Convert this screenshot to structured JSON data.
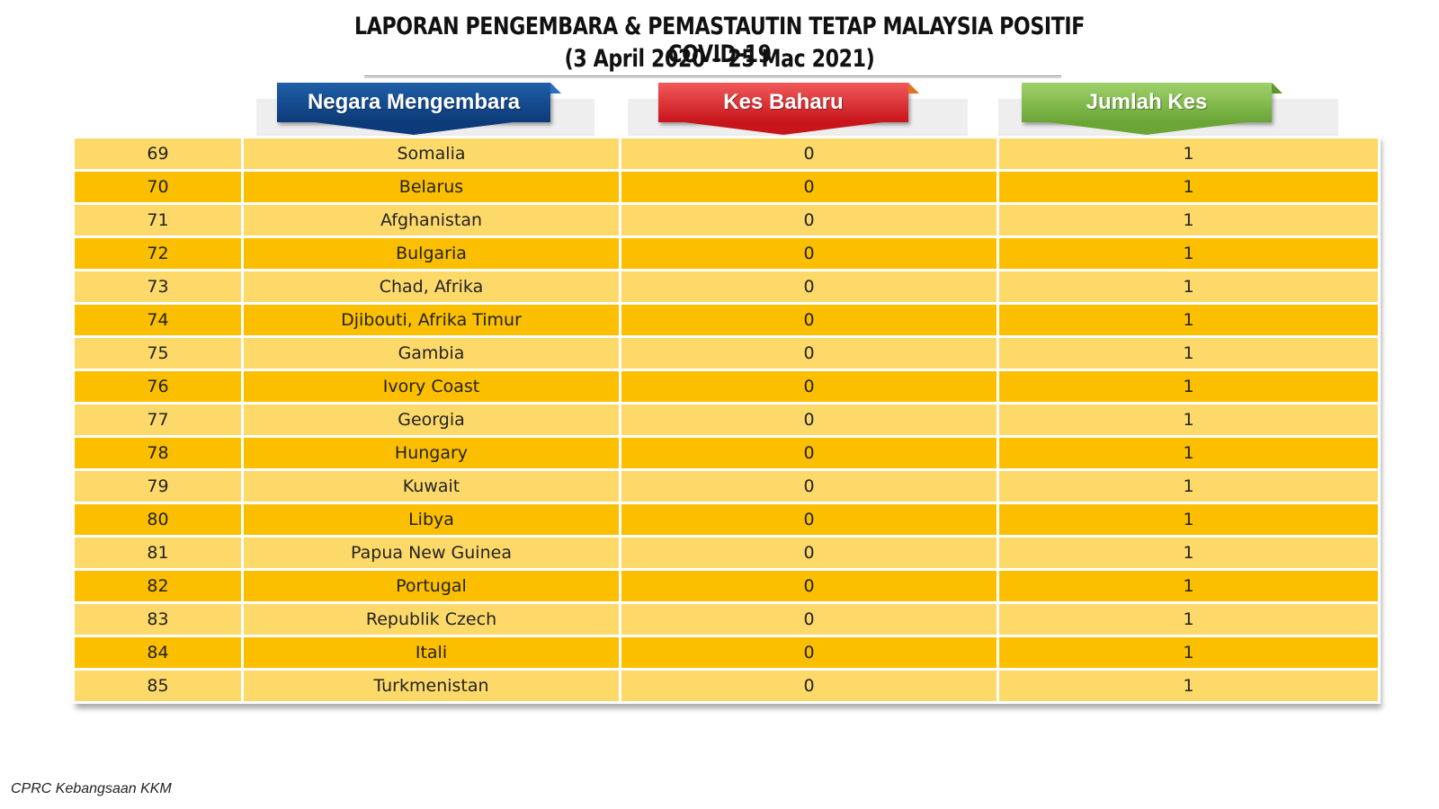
{
  "title": {
    "line1": "LAPORAN PENGEMBARA & PEMASTAUTIN TETAP MALAYSIA POSITIF COVID-19",
    "line2": "(3 April 2020 – 25 Mac 2021)"
  },
  "headers": {
    "country": "Negara Mengembara",
    "new_cases": "Kes Baharu",
    "total_cases": "Jumlah Kes"
  },
  "colors": {
    "row_light": "#fdd96a",
    "row_dark": "#fcbf00",
    "header_blue": "#0d3a78",
    "header_red": "#c8151b",
    "header_green": "#6aa535"
  },
  "rows": [
    {
      "no": "69",
      "country": "Somalia",
      "new": "0",
      "total": "1"
    },
    {
      "no": "70",
      "country": "Belarus",
      "new": "0",
      "total": "1"
    },
    {
      "no": "71",
      "country": "Afghanistan",
      "new": "0",
      "total": "1"
    },
    {
      "no": "72",
      "country": "Bulgaria",
      "new": "0",
      "total": "1"
    },
    {
      "no": "73",
      "country": "Chad, Afrika",
      "new": "0",
      "total": "1"
    },
    {
      "no": "74",
      "country": "Djibouti, Afrika Timur",
      "new": "0",
      "total": "1"
    },
    {
      "no": "75",
      "country": "Gambia",
      "new": "0",
      "total": "1"
    },
    {
      "no": "76",
      "country": "Ivory Coast",
      "new": "0",
      "total": "1"
    },
    {
      "no": "77",
      "country": "Georgia",
      "new": "0",
      "total": "1"
    },
    {
      "no": "78",
      "country": "Hungary",
      "new": "0",
      "total": "1"
    },
    {
      "no": "79",
      "country": "Kuwait",
      "new": "0",
      "total": "1"
    },
    {
      "no": "80",
      "country": "Libya",
      "new": "0",
      "total": "1"
    },
    {
      "no": "81",
      "country": "Papua New Guinea",
      "new": "0",
      "total": "1"
    },
    {
      "no": "82",
      "country": "Portugal",
      "new": "0",
      "total": "1"
    },
    {
      "no": "83",
      "country": "Republik Czech",
      "new": "0",
      "total": "1"
    },
    {
      "no": "84",
      "country": "Itali",
      "new": "0",
      "total": "1"
    },
    {
      "no": "85",
      "country": "Turkmenistan",
      "new": "0",
      "total": "1"
    }
  ],
  "footer": "CPRC Kebangsaan KKM"
}
